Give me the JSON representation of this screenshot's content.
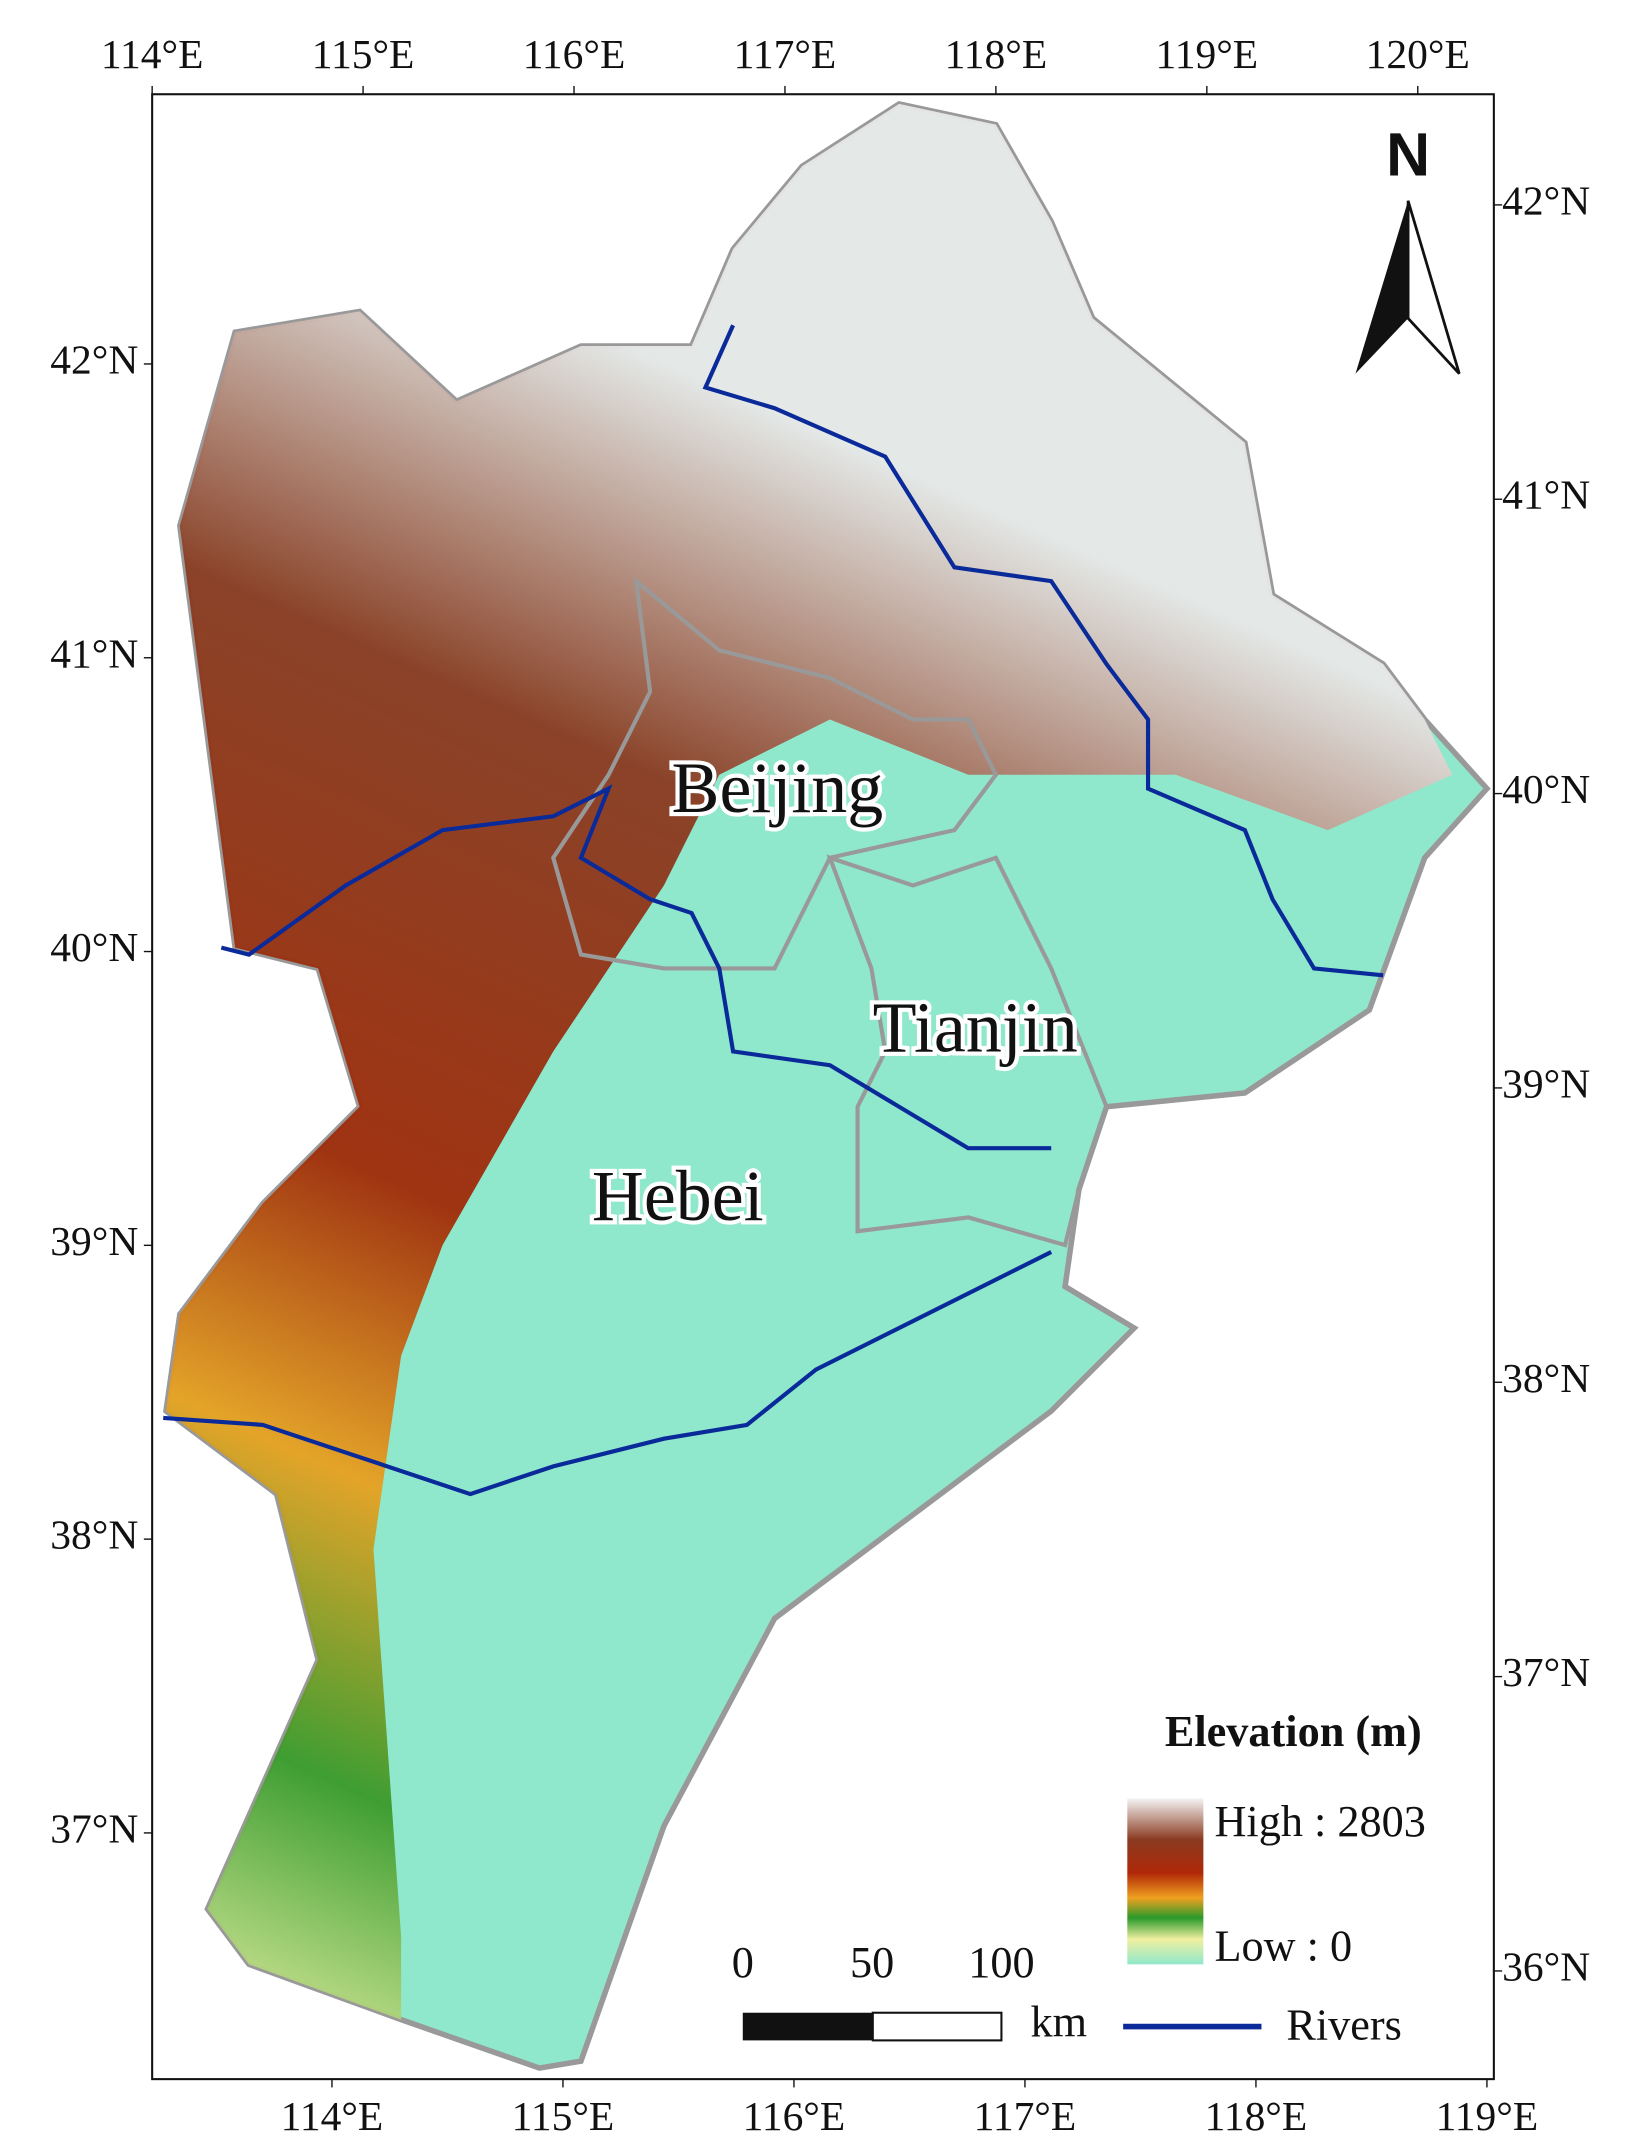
{
  "map": {
    "top_ticks": [
      "114°E",
      "115°E",
      "116°E",
      "117°E",
      "118°E",
      "119°E",
      "120°E"
    ],
    "bottom_ticks": [
      "114°E",
      "115°E",
      "116°E",
      "117°E",
      "118°E",
      "119°E"
    ],
    "left_ticks": [
      "42°N",
      "41°N",
      "40°N",
      "39°N",
      "38°N",
      "37°N"
    ],
    "right_ticks": [
      "42°N",
      "41°N",
      "40°N",
      "39°N",
      "38°N",
      "37°N",
      "36°N"
    ],
    "regions": [
      "Beijing",
      "Tianjin",
      "Hebei"
    ],
    "north": "N",
    "legend": {
      "title": "Elevation (m)",
      "high": "High : 2803",
      "low": "Low : 0",
      "rivers": "Rivers"
    },
    "scale_bar": {
      "labels": [
        "0",
        "50",
        "100"
      ],
      "unit": "km"
    }
  }
}
